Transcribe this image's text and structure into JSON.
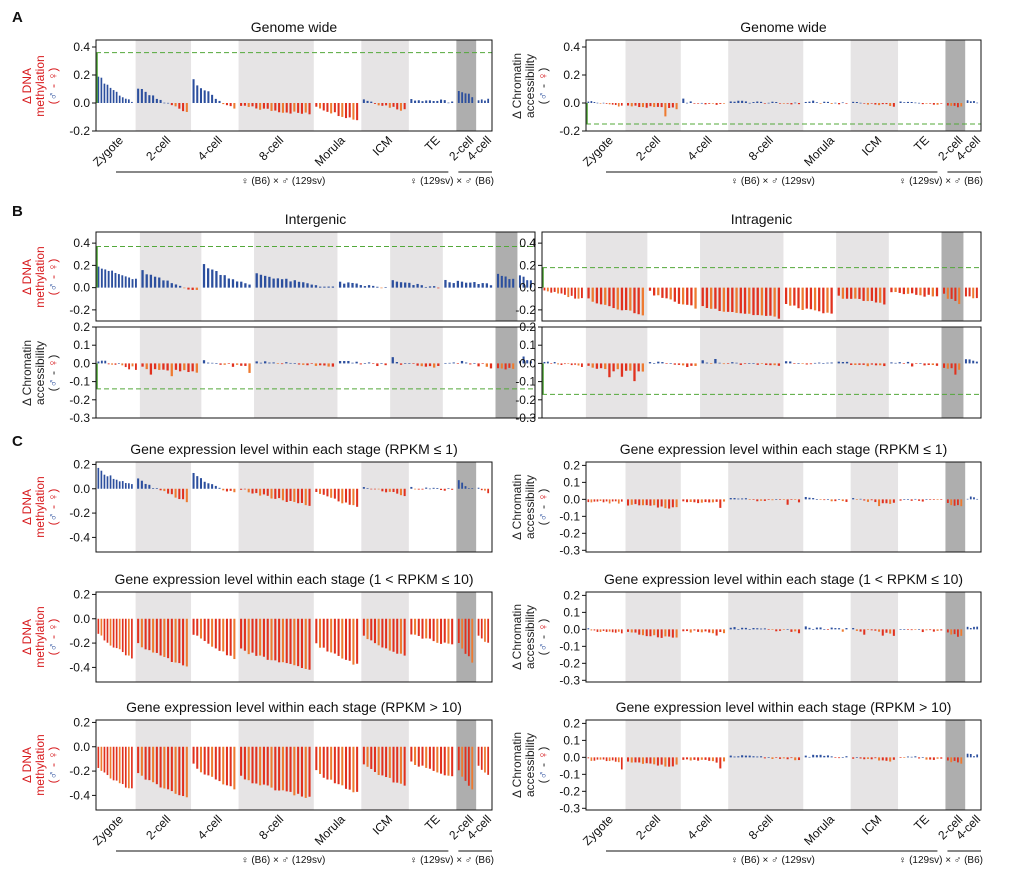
{
  "colors": {
    "methylation_label": "#d7191c",
    "accessibility_label": "#222222",
    "positive_bar": "#2c4f9e",
    "negative_bar": "#e1311e",
    "negative_bar_alt": "#ee7a30",
    "threshold_line": "#53a83a",
    "light_band": "#e6e4e5",
    "dark_band": "#aeaeae",
    "male_symbol": "#2c4f9e",
    "female_symbol": "#d7191c"
  },
  "panel_letters": [
    "A",
    "B",
    "C"
  ],
  "ylabels": {
    "methylation": [
      "Δ DNA",
      "methylation"
    ],
    "accessibility": [
      "Δ Chromatin",
      "accessibility"
    ],
    "sex": {
      "male": "♂",
      "dash": " - ",
      "female": "♀"
    }
  },
  "stages": [
    "Zygote",
    "2-cell",
    "4-cell",
    "8-cell",
    "Morula",
    "ICM",
    "TE",
    "2-cell",
    "4-cell"
  ],
  "crosses": {
    "main": "♀ (B6) × ♂ (129sv)",
    "reciprocal": "♀ (129sv) × ♂ (B6)"
  },
  "chart_data": [
    {
      "id": "A-left",
      "type": "bar",
      "title": "Genome wide",
      "measure": "methylation",
      "ylim": [
        -0.2,
        0.45
      ],
      "yticks": [
        -0.2,
        0.0,
        0.2,
        0.4
      ],
      "threshold": [
        0.36
      ],
      "grid": false,
      "groups": [
        {
          "stage": "Zygote",
          "start": 0.2,
          "end": 0.0
        },
        {
          "stage": "2-cell",
          "start": 0.11,
          "end": -0.06
        },
        {
          "stage": "4-cell",
          "start": 0.17,
          "end": -0.05
        },
        {
          "stage": "8-cell",
          "start": -0.02,
          "end": -0.08
        },
        {
          "stage": "Morula",
          "start": -0.02,
          "end": -0.12
        },
        {
          "stage": "ICM",
          "start": 0.03,
          "end": -0.05
        },
        {
          "stage": "TE",
          "start": 0.03,
          "end": 0.01
        },
        {
          "stage": "2-cell",
          "start": 0.08,
          "end": 0.05
        },
        {
          "stage": "4-cell",
          "start": 0.03,
          "end": 0.02
        }
      ]
    },
    {
      "id": "A-right",
      "type": "bar",
      "title": "Genome wide",
      "measure": "accessibility",
      "ylim": [
        -0.2,
        0.45
      ],
      "yticks": [
        -0.2,
        0.0,
        0.2,
        0.4
      ],
      "threshold": [
        -0.15
      ],
      "grid": false,
      "groups": [
        {
          "stage": "Zygote",
          "start": 0.015,
          "end": -0.02
        },
        {
          "stage": "2-cell",
          "start": -0.02,
          "end": -0.04
        },
        {
          "stage": "4-cell",
          "start": 0.01,
          "end": -0.01
        },
        {
          "stage": "8-cell",
          "start": 0.015,
          "end": -0.005
        },
        {
          "stage": "Morula",
          "start": 0.01,
          "end": -0.005
        },
        {
          "stage": "ICM",
          "start": 0.01,
          "end": -0.02
        },
        {
          "stage": "TE",
          "start": 0.01,
          "end": -0.01
        },
        {
          "stage": "2-cell",
          "start": -0.02,
          "end": -0.03
        },
        {
          "stage": "4-cell",
          "start": 0.02,
          "end": 0.01
        }
      ]
    },
    {
      "id": "B-inter-meth",
      "type": "bar",
      "title": "Intergenic",
      "measure": "methylation",
      "ylim": [
        -0.3,
        0.5
      ],
      "yticks": [
        -0.2,
        0.0,
        0.2,
        0.4
      ],
      "threshold": [
        0.37
      ],
      "grid": false,
      "groups": [
        {
          "stage": "Zygote",
          "start": 0.2,
          "end": 0.07
        },
        {
          "stage": "2-cell",
          "start": 0.15,
          "end": -0.03
        },
        {
          "stage": "4-cell",
          "start": 0.21,
          "end": 0.02
        },
        {
          "stage": "8-cell",
          "start": 0.13,
          "end": 0.0
        },
        {
          "stage": "Morula",
          "start": 0.05,
          "end": 0.0
        },
        {
          "stage": "ICM",
          "start": 0.06,
          "end": 0.0
        },
        {
          "stage": "TE",
          "start": 0.06,
          "end": 0.03
        },
        {
          "stage": "2-cell",
          "start": 0.12,
          "end": 0.08
        },
        {
          "stage": "4-cell",
          "start": 0.1,
          "end": 0.07
        }
      ]
    },
    {
      "id": "B-intra-meth",
      "type": "bar",
      "title": "Intragenic",
      "measure": "methylation",
      "ylim": [
        -0.3,
        0.5
      ],
      "yticks": [
        -0.2,
        0.0,
        0.2,
        0.4
      ],
      "threshold": [
        0.18
      ],
      "grid": false,
      "groups": [
        {
          "stage": "Zygote",
          "start": -0.02,
          "end": -0.1
        },
        {
          "stage": "2-cell",
          "start": -0.1,
          "end": -0.24
        },
        {
          "stage": "4-cell",
          "start": -0.04,
          "end": -0.18
        },
        {
          "stage": "8-cell",
          "start": -0.17,
          "end": -0.27
        },
        {
          "stage": "Morula",
          "start": -0.15,
          "end": -0.24
        },
        {
          "stage": "ICM",
          "start": -0.08,
          "end": -0.14
        },
        {
          "stage": "TE",
          "start": -0.04,
          "end": -0.08
        },
        {
          "stage": "2-cell",
          "start": -0.06,
          "end": -0.15
        },
        {
          "stage": "4-cell",
          "start": -0.07,
          "end": -0.09
        }
      ]
    },
    {
      "id": "B-inter-acc",
      "type": "bar",
      "measure": "accessibility",
      "ylim": [
        -0.3,
        0.2
      ],
      "yticks": [
        -0.3,
        -0.2,
        -0.1,
        0.0,
        0.1,
        0.2
      ],
      "threshold": [
        -0.14
      ],
      "grid": false,
      "groups": [
        {
          "stage": "Zygote",
          "start": 0.015,
          "end": -0.02
        },
        {
          "stage": "2-cell",
          "start": -0.02,
          "end": -0.05
        },
        {
          "stage": "4-cell",
          "start": 0.01,
          "end": -0.02
        },
        {
          "stage": "8-cell",
          "start": 0.01,
          "end": -0.01
        },
        {
          "stage": "Morula",
          "start": 0.01,
          "end": -0.005
        },
        {
          "stage": "ICM",
          "start": 0.01,
          "end": -0.02
        },
        {
          "stage": "TE",
          "start": 0.01,
          "end": -0.01
        },
        {
          "stage": "2-cell",
          "start": -0.02,
          "end": -0.03
        },
        {
          "stage": "4-cell",
          "start": 0.02,
          "end": 0.01
        }
      ]
    },
    {
      "id": "B-intra-acc",
      "type": "bar",
      "measure": "accessibility",
      "ylim": [
        -0.3,
        0.2
      ],
      "yticks": [
        -0.3,
        -0.2,
        -0.1,
        0.0,
        0.1,
        0.2
      ],
      "threshold": [
        -0.17
      ],
      "grid": false,
      "groups": [
        {
          "stage": "Zygote",
          "start": 0.015,
          "end": -0.02
        },
        {
          "stage": "2-cell",
          "start": -0.02,
          "end": -0.05
        },
        {
          "stage": "4-cell",
          "start": 0.01,
          "end": -0.02
        },
        {
          "stage": "8-cell",
          "start": 0.01,
          "end": -0.01
        },
        {
          "stage": "Morula",
          "start": 0.01,
          "end": -0.005
        },
        {
          "stage": "ICM",
          "start": 0.01,
          "end": -0.02
        },
        {
          "stage": "TE",
          "start": 0.01,
          "end": -0.01
        },
        {
          "stage": "2-cell",
          "start": -0.02,
          "end": -0.03
        },
        {
          "stage": "4-cell",
          "start": 0.02,
          "end": 0.01
        }
      ]
    },
    {
      "id": "C1-left",
      "type": "bar",
      "title": "Gene expression level within each stage (RPKM ≤ 1)",
      "measure": "methylation",
      "ylim": [
        -0.52,
        0.22
      ],
      "yticks": [
        -0.4,
        -0.2,
        0.0,
        0.2
      ],
      "grid": false,
      "groups": [
        {
          "stage": "Zygote",
          "start": 0.16,
          "end": 0.03
        },
        {
          "stage": "2-cell",
          "start": 0.08,
          "end": -0.1
        },
        {
          "stage": "4-cell",
          "start": 0.12,
          "end": -0.04
        },
        {
          "stage": "8-cell",
          "start": 0.0,
          "end": -0.14
        },
        {
          "stage": "Morula",
          "start": -0.02,
          "end": -0.15
        },
        {
          "stage": "ICM",
          "start": 0.02,
          "end": -0.05
        },
        {
          "stage": "TE",
          "start": 0.01,
          "end": -0.01
        },
        {
          "stage": "2-cell",
          "start": 0.06,
          "end": 0.0
        },
        {
          "stage": "4-cell",
          "start": 0.0,
          "end": -0.03
        }
      ]
    },
    {
      "id": "C1-right",
      "type": "bar",
      "title": "Gene expression level within each stage (RPKM ≤ 1)",
      "measure": "accessibility",
      "ylim": [
        -0.31,
        0.22
      ],
      "yticks": [
        -0.3,
        -0.2,
        -0.1,
        0.0,
        0.1,
        0.2
      ],
      "grid": false,
      "groups": [
        {
          "stage": "Zygote",
          "start": -0.01,
          "end": -0.02
        },
        {
          "stage": "2-cell",
          "start": -0.03,
          "end": -0.05
        },
        {
          "stage": "4-cell",
          "start": -0.01,
          "end": -0.02
        },
        {
          "stage": "8-cell",
          "start": 0.01,
          "end": -0.01
        },
        {
          "stage": "Morula",
          "start": 0.01,
          "end": -0.01
        },
        {
          "stage": "ICM",
          "start": 0.0,
          "end": -0.02
        },
        {
          "stage": "TE",
          "start": 0.0,
          "end": -0.01
        },
        {
          "stage": "2-cell",
          "start": -0.02,
          "end": -0.04
        },
        {
          "stage": "4-cell",
          "start": 0.01,
          "end": 0.01
        }
      ]
    },
    {
      "id": "C2-left",
      "type": "bar",
      "title": "Gene expression level within each stage (1 < RPKM ≤ 10)",
      "measure": "methylation",
      "ylim": [
        -0.52,
        0.22
      ],
      "yticks": [
        -0.4,
        -0.2,
        0.0,
        0.2
      ],
      "grid": false,
      "groups": [
        {
          "stage": "Zygote",
          "start": -0.12,
          "end": -0.32
        },
        {
          "stage": "2-cell",
          "start": -0.2,
          "end": -0.4
        },
        {
          "stage": "4-cell",
          "start": -0.12,
          "end": -0.32
        },
        {
          "stage": "8-cell",
          "start": -0.25,
          "end": -0.42
        },
        {
          "stage": "Morula",
          "start": -0.2,
          "end": -0.38
        },
        {
          "stage": "ICM",
          "start": -0.14,
          "end": -0.3
        },
        {
          "stage": "TE",
          "start": -0.12,
          "end": -0.22
        },
        {
          "stage": "2-cell",
          "start": -0.2,
          "end": -0.35
        },
        {
          "stage": "4-cell",
          "start": -0.14,
          "end": -0.2
        }
      ]
    },
    {
      "id": "C2-right",
      "type": "bar",
      "title": "Gene expression level within each stage (1 < RPKM ≤ 10)",
      "measure": "accessibility",
      "ylim": [
        -0.31,
        0.22
      ],
      "yticks": [
        -0.3,
        -0.2,
        -0.1,
        0.0,
        0.1,
        0.2
      ],
      "grid": false,
      "groups": [
        {
          "stage": "Zygote",
          "start": 0.0,
          "end": -0.02
        },
        {
          "stage": "2-cell",
          "start": -0.02,
          "end": -0.05
        },
        {
          "stage": "4-cell",
          "start": -0.01,
          "end": -0.02
        },
        {
          "stage": "8-cell",
          "start": 0.01,
          "end": -0.01
        },
        {
          "stage": "Morula",
          "start": 0.01,
          "end": 0.0
        },
        {
          "stage": "ICM",
          "start": 0.0,
          "end": -0.02
        },
        {
          "stage": "TE",
          "start": 0.0,
          "end": -0.01
        },
        {
          "stage": "2-cell",
          "start": -0.02,
          "end": -0.04
        },
        {
          "stage": "4-cell",
          "start": 0.01,
          "end": 0.01
        }
      ]
    },
    {
      "id": "C3-left",
      "type": "bar",
      "title": "Gene expression level within each stage (RPKM > 10)",
      "measure": "methylation",
      "ylim": [
        -0.52,
        0.22
      ],
      "yticks": [
        -0.4,
        -0.2,
        0.0,
        0.2
      ],
      "grid": false,
      "groups": [
        {
          "stage": "Zygote",
          "start": -0.18,
          "end": -0.35
        },
        {
          "stage": "2-cell",
          "start": -0.22,
          "end": -0.42
        },
        {
          "stage": "4-cell",
          "start": -0.15,
          "end": -0.35
        },
        {
          "stage": "8-cell",
          "start": -0.25,
          "end": -0.42
        },
        {
          "stage": "Morula",
          "start": -0.2,
          "end": -0.38
        },
        {
          "stage": "ICM",
          "start": -0.15,
          "end": -0.32
        },
        {
          "stage": "TE",
          "start": -0.12,
          "end": -0.25
        },
        {
          "stage": "2-cell",
          "start": -0.2,
          "end": -0.34
        },
        {
          "stage": "4-cell",
          "start": -0.15,
          "end": -0.22
        }
      ]
    },
    {
      "id": "C3-right",
      "type": "bar",
      "title": "Gene expression level within each stage (RPKM > 10)",
      "measure": "accessibility",
      "ylim": [
        -0.31,
        0.22
      ],
      "yticks": [
        -0.3,
        -0.2,
        -0.1,
        0.0,
        0.1,
        0.2
      ],
      "grid": false,
      "groups": [
        {
          "stage": "Zygote",
          "start": -0.01,
          "end": -0.03
        },
        {
          "stage": "2-cell",
          "start": -0.03,
          "end": -0.05
        },
        {
          "stage": "4-cell",
          "start": -0.01,
          "end": -0.03
        },
        {
          "stage": "8-cell",
          "start": 0.01,
          "end": -0.01
        },
        {
          "stage": "Morula",
          "start": 0.01,
          "end": 0.0
        },
        {
          "stage": "ICM",
          "start": 0.0,
          "end": -0.02
        },
        {
          "stage": "TE",
          "start": 0.0,
          "end": -0.01
        },
        {
          "stage": "2-cell",
          "start": -0.02,
          "end": -0.03
        },
        {
          "stage": "4-cell",
          "start": 0.02,
          "end": 0.01
        }
      ]
    }
  ]
}
